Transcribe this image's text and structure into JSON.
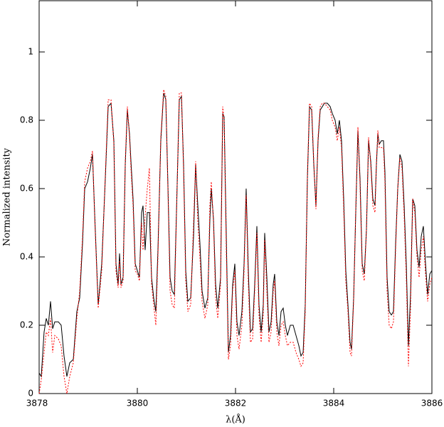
{
  "chart_data": {
    "type": "line",
    "x_label": "λ(Å)",
    "y_label": "Normalized intensity",
    "xlim": [
      3878,
      3886
    ],
    "ylim": [
      0,
      1.15
    ],
    "xticks": [
      3878,
      3880,
      3882,
      3884,
      3886
    ],
    "yticks": [
      0,
      0.2,
      0.4,
      0.6,
      0.8,
      1
    ],
    "ticks_all_sides": true,
    "x": [
      3878.0,
      3878.043,
      3878.101,
      3878.145,
      3878.188,
      3878.232,
      3878.275,
      3878.319,
      3878.391,
      3878.449,
      3878.507,
      3878.565,
      3878.623,
      3878.696,
      3878.768,
      3878.826,
      3878.884,
      3878.928,
      3878.986,
      3879.043,
      3879.087,
      3879.13,
      3879.203,
      3879.275,
      3879.348,
      3879.406,
      3879.464,
      3879.522,
      3879.565,
      3879.609,
      3879.638,
      3879.667,
      3879.71,
      3879.754,
      3879.797,
      3879.841,
      3879.87,
      3879.913,
      3879.957,
      3880.0,
      3880.043,
      3880.087,
      3880.116,
      3880.159,
      3880.203,
      3880.246,
      3880.29,
      3880.333,
      3880.377,
      3880.42,
      3880.478,
      3880.536,
      3880.58,
      3880.623,
      3880.667,
      3880.71,
      3880.754,
      3880.797,
      3880.855,
      3880.899,
      3880.942,
      3880.986,
      3881.029,
      3881.087,
      3881.145,
      3881.188,
      3881.232,
      3881.275,
      3881.319,
      3881.377,
      3881.435,
      3881.478,
      3881.507,
      3881.551,
      3881.594,
      3881.638,
      3881.696,
      3881.739,
      3881.768,
      3881.812,
      3881.855,
      3881.899,
      3881.942,
      3881.986,
      3882.029,
      3882.072,
      3882.13,
      3882.174,
      3882.217,
      3882.261,
      3882.304,
      3882.348,
      3882.391,
      3882.435,
      3882.478,
      3882.522,
      3882.565,
      3882.594,
      3882.638,
      3882.681,
      3882.725,
      3882.768,
      3882.797,
      3882.841,
      3882.884,
      3882.928,
      3882.971,
      3883.014,
      3883.058,
      3883.116,
      3883.174,
      3883.232,
      3883.29,
      3883.333,
      3883.377,
      3883.42,
      3883.464,
      3883.507,
      3883.551,
      3883.594,
      3883.638,
      3883.681,
      3883.725,
      3883.768,
      3883.812,
      3883.87,
      3883.928,
      3883.971,
      3884.029,
      3884.072,
      3884.116,
      3884.159,
      3884.203,
      3884.246,
      3884.29,
      3884.333,
      3884.362,
      3884.406,
      3884.449,
      3884.493,
      3884.536,
      3884.58,
      3884.623,
      3884.667,
      3884.71,
      3884.754,
      3884.797,
      3884.841,
      3884.87,
      3884.899,
      3884.928,
      3884.971,
      3885.014,
      3885.043,
      3885.087,
      3885.13,
      3885.174,
      3885.217,
      3885.261,
      3885.304,
      3885.348,
      3885.391,
      3885.435,
      3885.478,
      3885.522,
      3885.565,
      3885.609,
      3885.652,
      3885.696,
      3885.739,
      3885.783,
      3885.826,
      3885.87,
      3885.913,
      3885.957,
      3886.0
    ],
    "series": [
      {
        "color": "#000000",
        "dash": "solid",
        "values": [
          0.06,
          0.05,
          0.18,
          0.22,
          0.2,
          0.27,
          0.19,
          0.21,
          0.21,
          0.2,
          0.11,
          0.05,
          0.09,
          0.1,
          0.24,
          0.28,
          0.44,
          0.6,
          0.62,
          0.66,
          0.7,
          0.53,
          0.26,
          0.38,
          0.63,
          0.84,
          0.85,
          0.74,
          0.38,
          0.32,
          0.41,
          0.32,
          0.34,
          0.67,
          0.83,
          0.76,
          0.68,
          0.57,
          0.38,
          0.36,
          0.34,
          0.53,
          0.55,
          0.42,
          0.53,
          0.53,
          0.34,
          0.28,
          0.24,
          0.42,
          0.74,
          0.88,
          0.86,
          0.61,
          0.34,
          0.3,
          0.29,
          0.53,
          0.86,
          0.87,
          0.67,
          0.36,
          0.27,
          0.28,
          0.46,
          0.67,
          0.55,
          0.44,
          0.3,
          0.25,
          0.28,
          0.51,
          0.6,
          0.51,
          0.32,
          0.25,
          0.34,
          0.82,
          0.81,
          0.46,
          0.12,
          0.17,
          0.32,
          0.38,
          0.21,
          0.17,
          0.24,
          0.38,
          0.6,
          0.36,
          0.18,
          0.19,
          0.32,
          0.49,
          0.26,
          0.18,
          0.26,
          0.47,
          0.34,
          0.18,
          0.21,
          0.32,
          0.35,
          0.21,
          0.17,
          0.24,
          0.25,
          0.2,
          0.17,
          0.2,
          0.2,
          0.17,
          0.14,
          0.11,
          0.12,
          0.26,
          0.63,
          0.84,
          0.83,
          0.67,
          0.55,
          0.74,
          0.83,
          0.84,
          0.85,
          0.85,
          0.84,
          0.82,
          0.8,
          0.76,
          0.8,
          0.74,
          0.57,
          0.36,
          0.26,
          0.15,
          0.13,
          0.28,
          0.53,
          0.77,
          0.63,
          0.38,
          0.35,
          0.48,
          0.74,
          0.68,
          0.57,
          0.55,
          0.67,
          0.76,
          0.73,
          0.74,
          0.74,
          0.65,
          0.34,
          0.24,
          0.23,
          0.24,
          0.44,
          0.6,
          0.7,
          0.68,
          0.55,
          0.38,
          0.14,
          0.29,
          0.57,
          0.55,
          0.42,
          0.37,
          0.46,
          0.49,
          0.38,
          0.29,
          0.35,
          0.36
        ]
      },
      {
        "color": "#ff0000",
        "dash": "dotted",
        "values": [
          0.0,
          0.04,
          0.12,
          0.18,
          0.17,
          0.22,
          0.12,
          0.17,
          0.16,
          0.14,
          0.05,
          0.0,
          0.05,
          0.09,
          0.22,
          0.3,
          0.46,
          0.62,
          0.66,
          0.68,
          0.71,
          0.52,
          0.25,
          0.36,
          0.64,
          0.86,
          0.86,
          0.73,
          0.36,
          0.31,
          0.39,
          0.31,
          0.33,
          0.68,
          0.84,
          0.75,
          0.66,
          0.55,
          0.36,
          0.35,
          0.33,
          0.5,
          0.42,
          0.52,
          0.6,
          0.66,
          0.32,
          0.26,
          0.2,
          0.4,
          0.75,
          0.89,
          0.87,
          0.6,
          0.3,
          0.26,
          0.25,
          0.52,
          0.88,
          0.88,
          0.65,
          0.33,
          0.24,
          0.26,
          0.5,
          0.68,
          0.5,
          0.4,
          0.27,
          0.22,
          0.26,
          0.55,
          0.62,
          0.5,
          0.28,
          0.22,
          0.32,
          0.84,
          0.8,
          0.42,
          0.1,
          0.14,
          0.3,
          0.36,
          0.17,
          0.13,
          0.2,
          0.36,
          0.58,
          0.32,
          0.15,
          0.16,
          0.3,
          0.47,
          0.23,
          0.15,
          0.23,
          0.45,
          0.3,
          0.15,
          0.18,
          0.3,
          0.33,
          0.18,
          0.14,
          0.2,
          0.21,
          0.17,
          0.14,
          0.15,
          0.15,
          0.12,
          0.1,
          0.08,
          0.09,
          0.24,
          0.64,
          0.85,
          0.84,
          0.68,
          0.54,
          0.75,
          0.84,
          0.85,
          0.85,
          0.84,
          0.83,
          0.8,
          0.78,
          0.74,
          0.78,
          0.72,
          0.54,
          0.33,
          0.24,
          0.12,
          0.11,
          0.27,
          0.54,
          0.78,
          0.61,
          0.36,
          0.33,
          0.48,
          0.75,
          0.67,
          0.55,
          0.53,
          0.68,
          0.77,
          0.72,
          0.72,
          0.72,
          0.62,
          0.3,
          0.2,
          0.19,
          0.21,
          0.42,
          0.6,
          0.69,
          0.66,
          0.52,
          0.34,
          0.08,
          0.25,
          0.57,
          0.53,
          0.4,
          0.34,
          0.42,
          0.46,
          0.35,
          0.27,
          0.32,
          0.34
        ]
      }
    ]
  }
}
